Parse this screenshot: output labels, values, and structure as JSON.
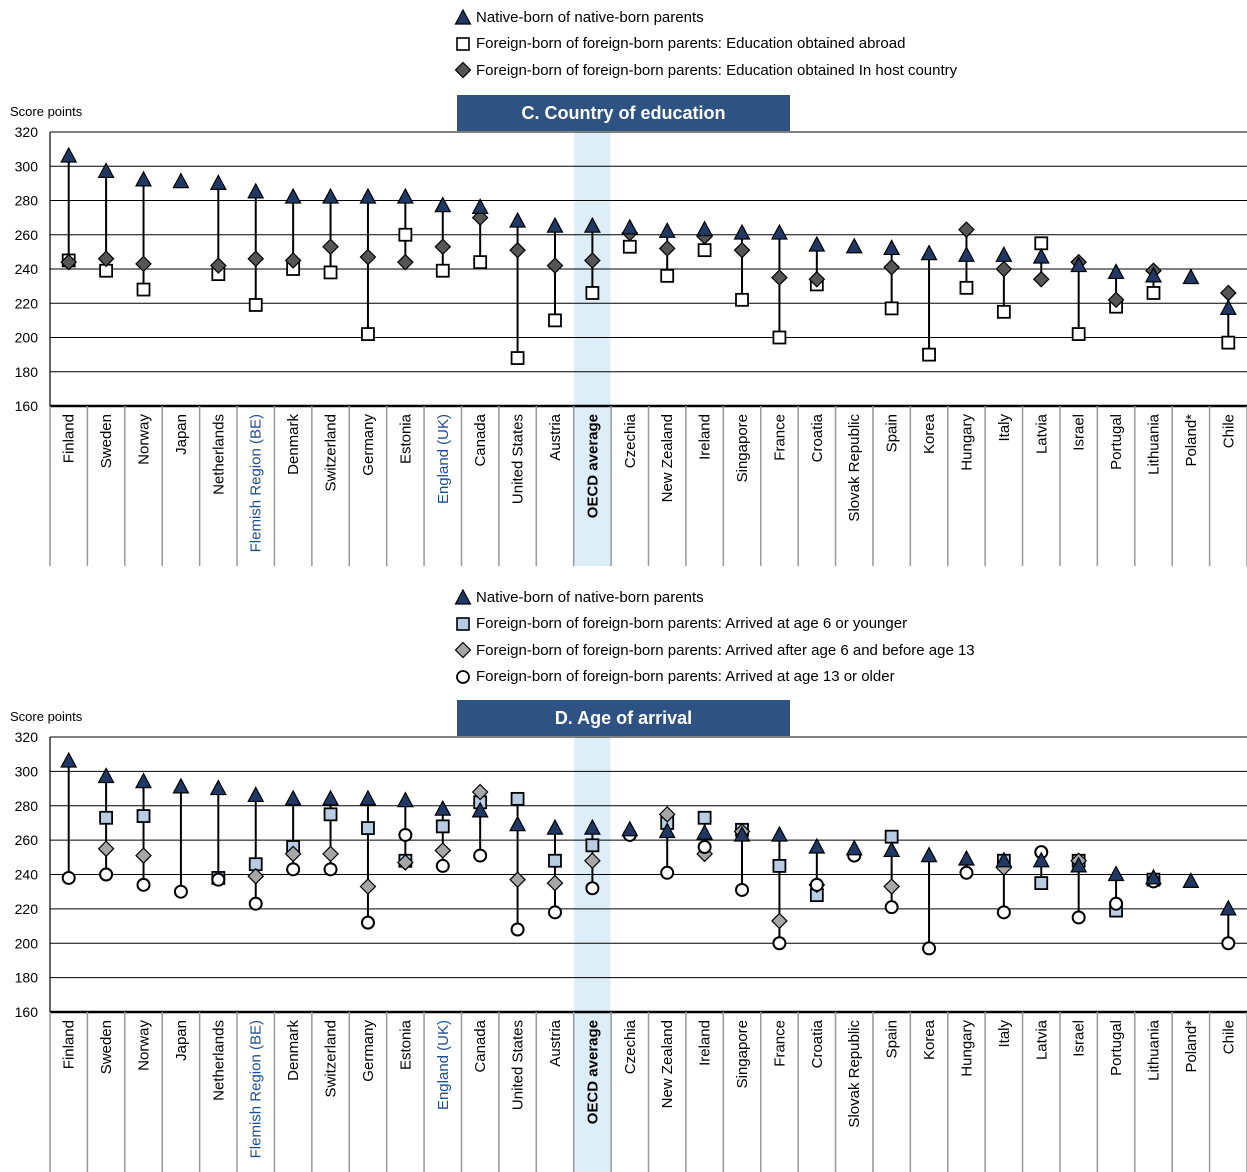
{
  "colors": {
    "native": "#1f3864",
    "abroad_square": "#ffffff",
    "host_diamond": "#555555",
    "age6_square": "#b8cce4",
    "age6_13_diamond": "#a6a6a6",
    "age13_circle": "#ffffff",
    "panel_title_bg": "#2e5382",
    "oecd_band": "#ddeef9",
    "blue_label": "#1f4e8c"
  },
  "chart_data": [
    {
      "type": "scatter",
      "title": "C. Country of education",
      "ylabel": "Score points",
      "ylim": [
        160,
        320
      ],
      "yticks": [
        160,
        180,
        200,
        220,
        240,
        260,
        280,
        300,
        320
      ],
      "legend": [
        "Native-born of native-born parents",
        "Foreign-born of foreign-born parents: Education obtained abroad",
        "Foreign-born of foreign-born parents: Education obtained In host country"
      ],
      "categories": [
        "Finland",
        "Sweden",
        "Norway",
        "Japan",
        "Netherlands",
        "Flemish Region (BE)",
        "Denmark",
        "Switzerland",
        "Germany",
        "Estonia",
        "England (UK)",
        "Canada",
        "United States",
        "Austria",
        "OECD average",
        "Czechia",
        "New Zealand",
        "Ireland",
        "Singapore",
        "France",
        "Croatia",
        "Slovak Republic",
        "Spain",
        "Korea",
        "Hungary",
        "Italy",
        "Latvia",
        "Israel",
        "Portugal",
        "Lithuania",
        "Poland*",
        "Chile"
      ],
      "series": [
        {
          "name": "Native-born of native-born parents",
          "marker": "triangle",
          "values": [
            306,
            297,
            292,
            291,
            290,
            285,
            282,
            282,
            282,
            282,
            277,
            276,
            268,
            265,
            265,
            264,
            262,
            263,
            261,
            261,
            254,
            253,
            252,
            249,
            248,
            248,
            247,
            242,
            238,
            236,
            235,
            217
          ]
        },
        {
          "name": "Foreign-born of foreign-born parents: Education obtained abroad",
          "marker": "square",
          "values": [
            245,
            239,
            228,
            null,
            237,
            219,
            240,
            238,
            202,
            260,
            239,
            244,
            188,
            210,
            226,
            253,
            236,
            251,
            222,
            200,
            231,
            null,
            217,
            190,
            229,
            215,
            255,
            202,
            218,
            226,
            null,
            197
          ]
        },
        {
          "name": "Foreign-born of foreign-born parents: Education obtained In host country",
          "marker": "diamond",
          "values": [
            244,
            246,
            243,
            null,
            242,
            246,
            245,
            253,
            247,
            244,
            253,
            270,
            251,
            242,
            245,
            261,
            252,
            259,
            251,
            235,
            234,
            null,
            241,
            null,
            263,
            240,
            234,
            244,
            222,
            239,
            null,
            226
          ]
        }
      ]
    },
    {
      "type": "scatter",
      "title": "D. Age of arrival",
      "ylabel": "Score points",
      "ylim": [
        160,
        320
      ],
      "yticks": [
        160,
        180,
        200,
        220,
        240,
        260,
        280,
        300,
        320
      ],
      "legend": [
        "Native-born of native-born parents",
        "Foreign-born of foreign-born parents: Arrived at age 6 or younger",
        "Foreign-born of foreign-born parents: Arrived after age 6 and before age 13",
        "Foreign-born of foreign-born parents: Arrived at age 13 or older"
      ],
      "categories": [
        "Finland",
        "Sweden",
        "Norway",
        "Japan",
        "Netherlands",
        "Flemish Region (BE)",
        "Denmark",
        "Switzerland",
        "Germany",
        "Estonia",
        "England (UK)",
        "Canada",
        "United States",
        "Austria",
        "OECD average",
        "Czechia",
        "New Zealand",
        "Ireland",
        "Singapore",
        "France",
        "Croatia",
        "Slovak Republic",
        "Spain",
        "Korea",
        "Hungary",
        "Italy",
        "Latvia",
        "Israel",
        "Portugal",
        "Lithuania",
        "Poland*",
        "Chile"
      ],
      "series": [
        {
          "name": "Native-born of native-born parents",
          "marker": "triangle",
          "values": [
            306,
            297,
            294,
            291,
            290,
            286,
            284,
            284,
            284,
            283,
            278,
            277,
            269,
            267,
            267,
            266,
            265,
            264,
            263,
            263,
            256,
            255,
            254,
            251,
            249,
            248,
            248,
            245,
            240,
            238,
            236,
            220
          ]
        },
        {
          "name": "Foreign-born of foreign-born parents: Arrived at age 6 or younger",
          "marker": "square",
          "values": [
            null,
            273,
            274,
            null,
            238,
            246,
            256,
            275,
            267,
            248,
            268,
            282,
            284,
            248,
            257,
            null,
            270,
            273,
            266,
            245,
            228,
            null,
            262,
            null,
            null,
            248,
            235,
            248,
            219,
            237,
            null,
            null
          ]
        },
        {
          "name": "Foreign-born of foreign-born parents: Arrived after age 6 and before age 13",
          "marker": "diamond",
          "values": [
            null,
            255,
            251,
            null,
            null,
            239,
            252,
            252,
            233,
            247,
            254,
            288,
            237,
            235,
            248,
            null,
            275,
            252,
            265,
            213,
            234,
            null,
            233,
            null,
            null,
            244,
            null,
            248,
            null,
            null,
            null,
            null
          ]
        },
        {
          "name": "Foreign-born of foreign-born parents: Arrived at age 13 or older",
          "marker": "circle",
          "values": [
            238,
            240,
            234,
            230,
            237,
            223,
            243,
            243,
            212,
            263,
            245,
            251,
            208,
            218,
            232,
            263,
            241,
            256,
            231,
            200,
            234,
            251,
            221,
            197,
            241,
            218,
            253,
            215,
            223,
            236,
            null,
            200
          ]
        }
      ]
    }
  ],
  "blue_categories": [
    "Flemish Region (BE)",
    "England (UK)"
  ],
  "oecd_category": "OECD average"
}
